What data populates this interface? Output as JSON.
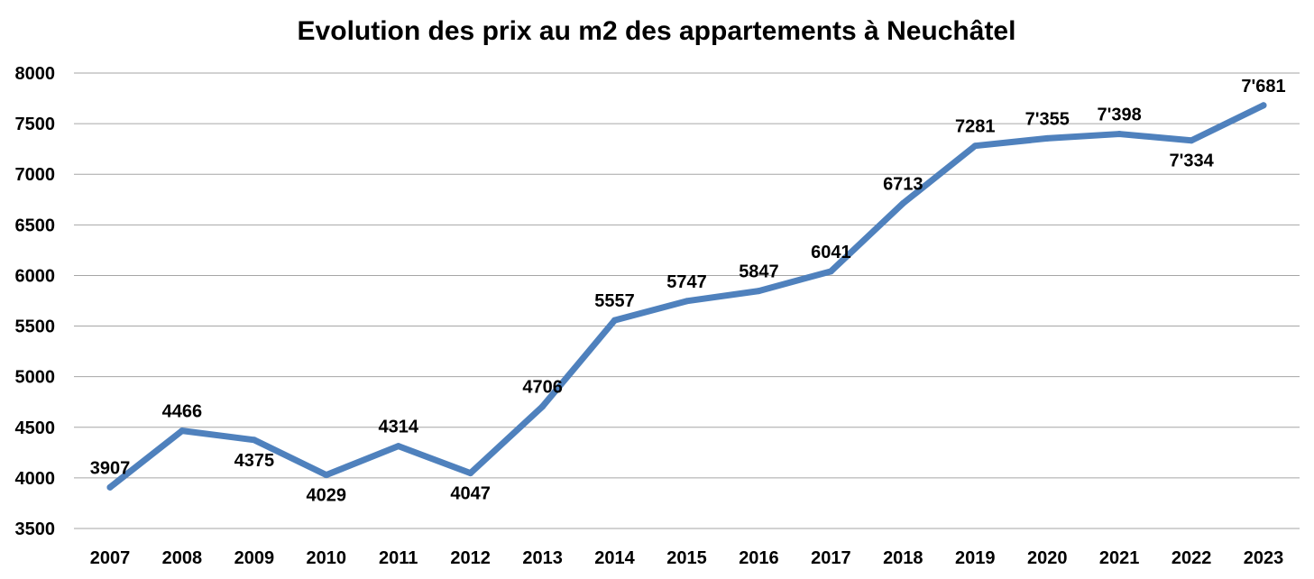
{
  "chart_data": {
    "type": "line",
    "title": "Evolution des prix au m2 des appartements à Neuchâtel",
    "xlabel": "",
    "ylabel": "",
    "categories": [
      "2007",
      "2008",
      "2009",
      "2010",
      "2011",
      "2012",
      "2013",
      "2014",
      "2015",
      "2016",
      "2017",
      "2018",
      "2019",
      "2020",
      "2021",
      "2022",
      "2023"
    ],
    "series": [
      {
        "values": [
          3907,
          4466,
          4375,
          4029,
          4314,
          4047,
          4706,
          5557,
          5747,
          5847,
          6041,
          6713,
          7281,
          7355,
          7398,
          7334,
          7681
        ],
        "data_labels": [
          "3907",
          "4466",
          "4375",
          "4029",
          "4314",
          "4047",
          "4706",
          "5557",
          "5747",
          "5847",
          "6041",
          "6713",
          "7281",
          "7'355",
          "7'398",
          "7'334",
          "7'681"
        ],
        "color": "#4f81bd"
      }
    ],
    "ylim": [
      3500,
      8000
    ],
    "yticks": [
      "8000",
      "7500",
      "7000",
      "6500",
      "6000",
      "5500",
      "5000",
      "4500",
      "4000",
      "3500"
    ],
    "grid": true,
    "legend": "none"
  }
}
